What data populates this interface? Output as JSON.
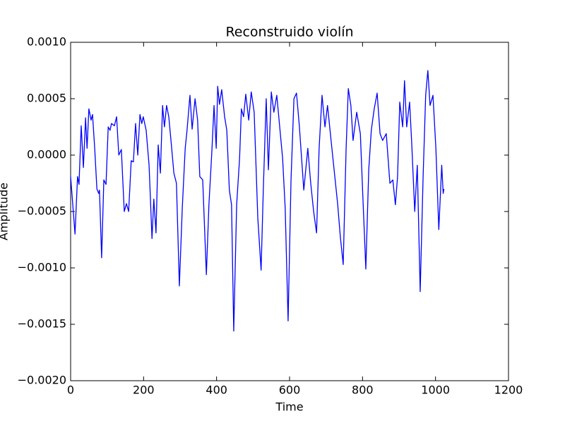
{
  "chart_data": {
    "type": "line",
    "title": "Reconstruido violín",
    "x_label": "Time",
    "y_label": "Amplitude",
    "xlim": [
      0,
      1200
    ],
    "xticks": [
      0,
      200,
      400,
      600,
      800,
      1000,
      1200
    ],
    "ylim": [
      -0.002,
      0.001
    ],
    "yticks": [
      {
        "value": -0.002,
        "label": "−0.0020"
      },
      {
        "value": -0.0015,
        "label": "−0.0015"
      },
      {
        "value": -0.001,
        "label": "−0.0010"
      },
      {
        "value": -0.0005,
        "label": "−0.0005"
      },
      {
        "value": 0,
        "label": "0.0000"
      },
      {
        "value": 0.0005,
        "label": "0.0005"
      },
      {
        "value": 0.001,
        "label": "0.0010"
      }
    ],
    "grid": false,
    "x": [
      0,
      12,
      19,
      23,
      29,
      35,
      41,
      45,
      50,
      56,
      60,
      66,
      72,
      77,
      79,
      85,
      91,
      97,
      103,
      108,
      112,
      120,
      126,
      132,
      139,
      147,
      153,
      159,
      166,
      172,
      178,
      184,
      190,
      195,
      199,
      207,
      215,
      223,
      228,
      234,
      240,
      246,
      252,
      257,
      263,
      269,
      275,
      283,
      290,
      298,
      306,
      314,
      319,
      327,
      333,
      341,
      348,
      354,
      362,
      372,
      379,
      387,
      393,
      399,
      403,
      408,
      414,
      422,
      428,
      435,
      441,
      447,
      455,
      463,
      468,
      474,
      480,
      488,
      495,
      503,
      513,
      522,
      528,
      536,
      542,
      550,
      557,
      565,
      573,
      581,
      588,
      596,
      604,
      612,
      619,
      627,
      639,
      650,
      658,
      666,
      674,
      681,
      689,
      697,
      704,
      716,
      724,
      732,
      739,
      747,
      755,
      761,
      768,
      774,
      784,
      794,
      801,
      809,
      817,
      824,
      832,
      840,
      848,
      855,
      865,
      875,
      883,
      890,
      896,
      902,
      910,
      915,
      921,
      929,
      935,
      943,
      950,
      958,
      966,
      973,
      979,
      985,
      993,
      1001,
      1009,
      1017,
      1021,
      1023
    ],
    "series": [
      {
        "color": "#0000ff",
        "values": [
          -0.00019,
          -0.0007,
          -0.00019,
          -0.00026,
          0.00026,
          -0.00011,
          0.00033,
          6e-05,
          0.00041,
          0.00031,
          0.00036,
          6e-05,
          -0.0003,
          -0.00034,
          -0.00031,
          -0.00091,
          -0.00022,
          -0.00026,
          0.00025,
          0.00022,
          0.00028,
          0.00026,
          0.00034,
          0,
          5e-05,
          -0.0005,
          -0.00043,
          -0.0005,
          -5e-05,
          -6e-05,
          0.00028,
          0,
          0.00036,
          0.00028,
          0.00034,
          0.00022,
          -9e-05,
          -0.00074,
          -0.00039,
          -0.00069,
          9e-05,
          -0.00016,
          0.00044,
          0.00025,
          0.00044,
          0.00034,
          0.00013,
          -0.00016,
          -0.00025,
          -0.00116,
          -0.00047,
          6e-05,
          0.00022,
          0.00053,
          0.00023,
          0.0005,
          0.00031,
          -0.00019,
          -0.00022,
          -0.00106,
          -0.00044,
          3e-05,
          0.00044,
          6e-05,
          0.00061,
          0.00045,
          0.00058,
          0.00034,
          0.00022,
          -0.00031,
          -0.00044,
          -0.00156,
          -0.00044,
          -3e-05,
          0.00041,
          0.00034,
          0.00054,
          0.00031,
          0.00056,
          0.00038,
          -0.00056,
          -0.00102,
          -0.00031,
          0.0005,
          -0.00013,
          0.00056,
          0.00038,
          0.00053,
          0.00025,
          -3e-05,
          -0.00047,
          -0.00147,
          -0.00022,
          0.0005,
          0.00055,
          0.00025,
          -0.00031,
          6e-05,
          -0.00025,
          -0.0005,
          -0.00069,
          6e-05,
          0.00053,
          0.00025,
          0.00044,
          6e-05,
          -0.00019,
          -0.00044,
          -0.00072,
          -0.00097,
          6e-05,
          0.00059,
          0.00044,
          0.00013,
          0.00038,
          0.00019,
          -0.00038,
          -0.00101,
          -0.00013,
          0.00022,
          0.00041,
          0.00055,
          0.00019,
          0.00013,
          0.00019,
          -0.00025,
          -0.00022,
          -0.00044,
          -0.00019,
          0.00047,
          0.00025,
          0.00066,
          0.00025,
          0.00047,
          9e-05,
          -0.0005,
          -9e-05,
          -0.00121,
          -0.00019,
          0.00053,
          0.00075,
          0.00044,
          0.00053,
          6e-05,
          -0.00066,
          -9e-05,
          -0.00034,
          -0.0003
        ]
      }
    ]
  }
}
